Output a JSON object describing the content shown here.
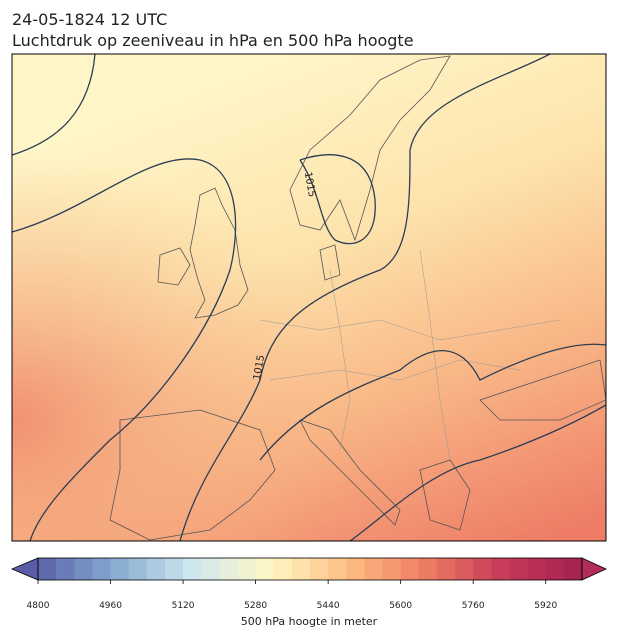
{
  "header": {
    "line1": "24-05-1824 12 UTC",
    "line2": "Luchtdruk op zeeniveau in hPa en 500 hPa hoogte"
  },
  "map": {
    "contour_labels": [
      "1015",
      "1015"
    ]
  },
  "colorbar": {
    "label": "500 hPa hoogte in meter",
    "lim": [
      4800,
      6000
    ],
    "step": 40,
    "ticks": [
      4800,
      4960,
      5120,
      5280,
      5440,
      5600,
      5760,
      5920
    ],
    "colormap": [
      "#5b62a8",
      "#86acd2",
      "#cfe8ef",
      "#fff7c4",
      "#fdbd82",
      "#ee7b63",
      "#c63a58",
      "#a3204f"
    ],
    "under_color": "#5a5da6",
    "over_color": "#b22e5a"
  }
}
